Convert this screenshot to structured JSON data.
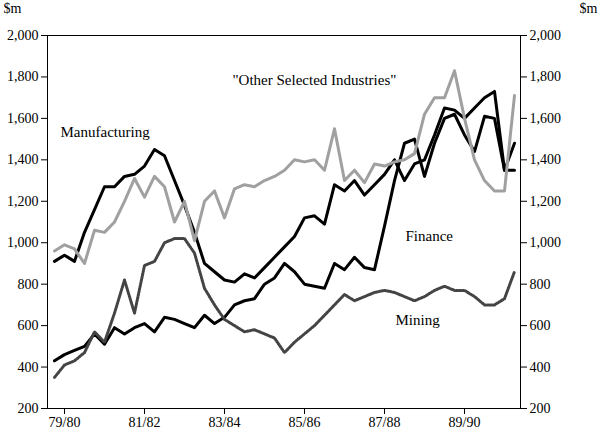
{
  "chart_data": {
    "type": "line",
    "y_label": "$m",
    "categories": [
      null,
      "79/80",
      null,
      null,
      null,
      null,
      null,
      null,
      null,
      "81/82",
      null,
      null,
      null,
      null,
      null,
      null,
      null,
      "83/84",
      null,
      null,
      null,
      null,
      null,
      null,
      null,
      "85/86",
      null,
      null,
      null,
      null,
      null,
      null,
      null,
      "87/88",
      null,
      null,
      null,
      null,
      null,
      null,
      null,
      "89/90",
      null,
      null,
      null,
      null,
      null
    ],
    "ylim": [
      200,
      2000
    ],
    "yticks": [
      200,
      400,
      600,
      800,
      1000,
      1200,
      1400,
      1600,
      1800,
      2000
    ],
    "y2lim": [
      200,
      2000
    ],
    "y2ticks": [
      200,
      400,
      600,
      800,
      1000,
      1200,
      1400,
      1600,
      1800,
      2000
    ],
    "grid": false,
    "series": [
      {
        "name": "Manufacturing",
        "color": "#000000",
        "line_style": "solid",
        "values": [
          910,
          940,
          910,
          1050,
          1160,
          1270,
          1270,
          1320,
          1330,
          1370,
          1450,
          1420,
          1300,
          1180,
          1050,
          900,
          860,
          820,
          810,
          850,
          830,
          880,
          930,
          980,
          1030,
          1120,
          1130,
          1090,
          1280,
          1250,
          1300,
          1230,
          1280,
          1330,
          1400,
          1300,
          1380,
          1400,
          1520,
          1650,
          1640,
          1600,
          1650,
          1700,
          1730,
          1350,
          1350
        ]
      },
      {
        "name": "Finance",
        "color": "#000000",
        "line_style": "solid",
        "values": [
          430,
          460,
          480,
          500,
          560,
          510,
          590,
          560,
          590,
          610,
          570,
          640,
          630,
          610,
          590,
          650,
          610,
          640,
          700,
          720,
          730,
          800,
          830,
          900,
          860,
          800,
          790,
          780,
          900,
          870,
          930,
          880,
          870,
          1080,
          1300,
          1480,
          1500,
          1320,
          1480,
          1600,
          1620,
          1520,
          1440,
          1610,
          1600,
          1350,
          1480
        ]
      },
      {
        "name": "\"Other Selected Industries\"",
        "color": "#a0a0a0",
        "line_style": "solid",
        "values": [
          960,
          990,
          970,
          900,
          1060,
          1050,
          1100,
          1200,
          1310,
          1220,
          1320,
          1270,
          1100,
          1200,
          1010,
          1200,
          1250,
          1120,
          1260,
          1280,
          1270,
          1300,
          1320,
          1350,
          1400,
          1390,
          1400,
          1350,
          1550,
          1300,
          1350,
          1290,
          1380,
          1370,
          1390,
          1400,
          1430,
          1620,
          1700,
          1700,
          1830,
          1600,
          1400,
          1300,
          1250,
          1250,
          1710
        ]
      },
      {
        "name": "Mining",
        "color": "#444444",
        "line_style": "dotted",
        "values": [
          350,
          410,
          430,
          470,
          570,
          520,
          660,
          820,
          660,
          890,
          910,
          1000,
          1020,
          1020,
          950,
          780,
          700,
          630,
          600,
          570,
          580,
          560,
          540,
          470,
          520,
          560,
          600,
          650,
          700,
          750,
          720,
          740,
          760,
          770,
          760,
          740,
          720,
          740,
          770,
          790,
          770,
          770,
          740,
          700,
          700,
          730,
          860
        ]
      }
    ]
  }
}
